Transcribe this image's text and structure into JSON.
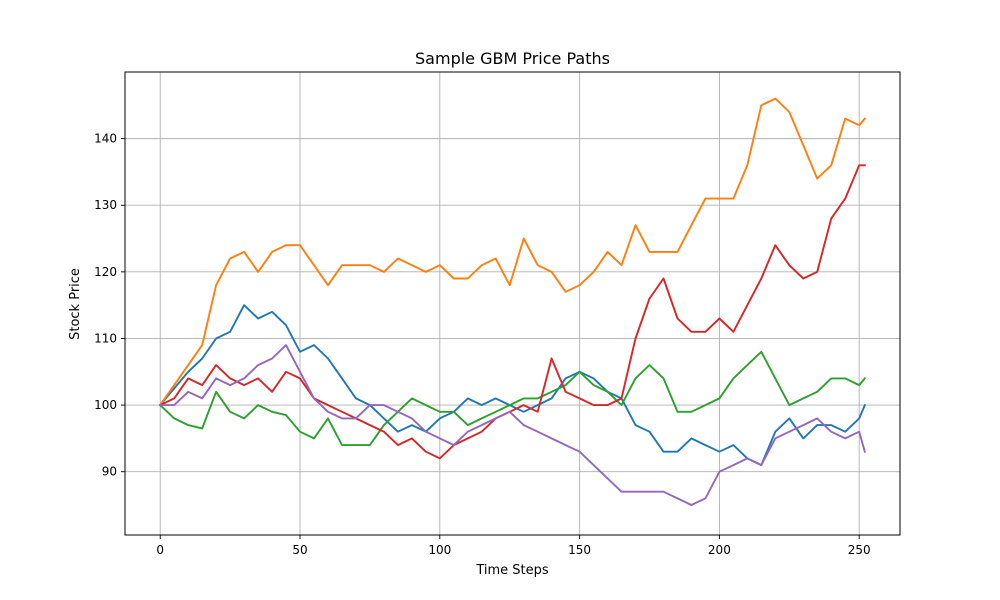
{
  "chart_data": {
    "type": "line",
    "title": "Sample GBM Price Paths",
    "xlabel": "Time Steps",
    "ylabel": "Stock Price",
    "xlim": [
      -12.6,
      264.6
    ],
    "ylim": [
      80.5,
      150.0
    ],
    "xticks": [
      0,
      50,
      100,
      150,
      200,
      250
    ],
    "yticks": [
      90,
      100,
      110,
      120,
      130,
      140
    ],
    "grid": true,
    "legend": "none",
    "series": [
      {
        "color": "#1f77b4",
        "points": [
          [
            0,
            100
          ],
          [
            5,
            102.5
          ],
          [
            10,
            105
          ],
          [
            15,
            107
          ],
          [
            20,
            110
          ],
          [
            25,
            111
          ],
          [
            30,
            115
          ],
          [
            35,
            113
          ],
          [
            40,
            114
          ],
          [
            45,
            112
          ],
          [
            50,
            108
          ],
          [
            55,
            109
          ],
          [
            60,
            107
          ],
          [
            65,
            104
          ],
          [
            70,
            101
          ],
          [
            75,
            100
          ],
          [
            80,
            98
          ],
          [
            85,
            96
          ],
          [
            90,
            97
          ],
          [
            95,
            96
          ],
          [
            100,
            98
          ],
          [
            105,
            99
          ],
          [
            110,
            101
          ],
          [
            115,
            100
          ],
          [
            120,
            101
          ],
          [
            125,
            100
          ],
          [
            130,
            99
          ],
          [
            135,
            100
          ],
          [
            140,
            101
          ],
          [
            145,
            104
          ],
          [
            150,
            105
          ],
          [
            155,
            104
          ],
          [
            160,
            102
          ],
          [
            165,
            101
          ],
          [
            170,
            97
          ],
          [
            175,
            96
          ],
          [
            180,
            93
          ],
          [
            185,
            93
          ],
          [
            190,
            95
          ],
          [
            195,
            94
          ],
          [
            200,
            93
          ],
          [
            205,
            94
          ],
          [
            210,
            92
          ],
          [
            215,
            91
          ],
          [
            220,
            96
          ],
          [
            225,
            98
          ],
          [
            230,
            95
          ],
          [
            235,
            97
          ],
          [
            240,
            97
          ],
          [
            245,
            96
          ],
          [
            250,
            98
          ],
          [
            252,
            100
          ]
        ]
      },
      {
        "color": "#ff7f0e",
        "points": [
          [
            0,
            100
          ],
          [
            5,
            103
          ],
          [
            10,
            106
          ],
          [
            15,
            109
          ],
          [
            20,
            118
          ],
          [
            25,
            122
          ],
          [
            30,
            123
          ],
          [
            35,
            120
          ],
          [
            40,
            123
          ],
          [
            45,
            124
          ],
          [
            50,
            124
          ],
          [
            55,
            121
          ],
          [
            60,
            118
          ],
          [
            65,
            121
          ],
          [
            70,
            121
          ],
          [
            75,
            121
          ],
          [
            80,
            120
          ],
          [
            85,
            122
          ],
          [
            90,
            121
          ],
          [
            95,
            120
          ],
          [
            100,
            121
          ],
          [
            105,
            119
          ],
          [
            110,
            119
          ],
          [
            115,
            121
          ],
          [
            120,
            122
          ],
          [
            125,
            118
          ],
          [
            130,
            125
          ],
          [
            135,
            121
          ],
          [
            140,
            120
          ],
          [
            145,
            117
          ],
          [
            150,
            118
          ],
          [
            155,
            120
          ],
          [
            160,
            123
          ],
          [
            165,
            121
          ],
          [
            170,
            127
          ],
          [
            175,
            123
          ],
          [
            180,
            123
          ],
          [
            185,
            123
          ],
          [
            190,
            127
          ],
          [
            195,
            131
          ],
          [
            200,
            131
          ],
          [
            205,
            131
          ],
          [
            210,
            136
          ],
          [
            215,
            145
          ],
          [
            220,
            146
          ],
          [
            225,
            144
          ],
          [
            230,
            139
          ],
          [
            235,
            134
          ],
          [
            240,
            136
          ],
          [
            245,
            143
          ],
          [
            250,
            142
          ],
          [
            252,
            143
          ]
        ]
      },
      {
        "color": "#2ca02c",
        "points": [
          [
            0,
            100
          ],
          [
            5,
            98
          ],
          [
            10,
            97
          ],
          [
            15,
            96.5
          ],
          [
            20,
            102
          ],
          [
            25,
            99
          ],
          [
            30,
            98
          ],
          [
            35,
            100
          ],
          [
            40,
            99
          ],
          [
            45,
            98.5
          ],
          [
            50,
            96
          ],
          [
            55,
            95
          ],
          [
            60,
            98
          ],
          [
            65,
            94
          ],
          [
            70,
            94
          ],
          [
            75,
            94
          ],
          [
            80,
            97
          ],
          [
            85,
            99
          ],
          [
            90,
            101
          ],
          [
            95,
            100
          ],
          [
            100,
            99
          ],
          [
            105,
            99
          ],
          [
            110,
            97
          ],
          [
            115,
            98
          ],
          [
            120,
            99
          ],
          [
            125,
            100
          ],
          [
            130,
            101
          ],
          [
            135,
            101
          ],
          [
            140,
            102
          ],
          [
            145,
            103
          ],
          [
            150,
            105
          ],
          [
            155,
            103
          ],
          [
            160,
            102
          ],
          [
            165,
            100
          ],
          [
            170,
            104
          ],
          [
            175,
            106
          ],
          [
            180,
            104
          ],
          [
            185,
            99
          ],
          [
            190,
            99
          ],
          [
            195,
            100
          ],
          [
            200,
            101
          ],
          [
            205,
            104
          ],
          [
            210,
            106
          ],
          [
            215,
            108
          ],
          [
            220,
            104
          ],
          [
            225,
            100
          ],
          [
            230,
            101
          ],
          [
            235,
            102
          ],
          [
            240,
            104
          ],
          [
            245,
            104
          ],
          [
            250,
            103
          ],
          [
            252,
            104
          ]
        ]
      },
      {
        "color": "#d62728",
        "points": [
          [
            0,
            100
          ],
          [
            5,
            101
          ],
          [
            10,
            104
          ],
          [
            15,
            103
          ],
          [
            20,
            106
          ],
          [
            25,
            104
          ],
          [
            30,
            103
          ],
          [
            35,
            104
          ],
          [
            40,
            102
          ],
          [
            45,
            105
          ],
          [
            50,
            104
          ],
          [
            55,
            101
          ],
          [
            60,
            100
          ],
          [
            65,
            99
          ],
          [
            70,
            98
          ],
          [
            75,
            97
          ],
          [
            80,
            96
          ],
          [
            85,
            94
          ],
          [
            90,
            95
          ],
          [
            95,
            93
          ],
          [
            100,
            92
          ],
          [
            105,
            94
          ],
          [
            110,
            95
          ],
          [
            115,
            96
          ],
          [
            120,
            98
          ],
          [
            125,
            99
          ],
          [
            130,
            100
          ],
          [
            135,
            99
          ],
          [
            140,
            107
          ],
          [
            145,
            102
          ],
          [
            150,
            101
          ],
          [
            155,
            100
          ],
          [
            160,
            100
          ],
          [
            165,
            101
          ],
          [
            170,
            110
          ],
          [
            175,
            116
          ],
          [
            180,
            119
          ],
          [
            185,
            113
          ],
          [
            190,
            111
          ],
          [
            195,
            111
          ],
          [
            200,
            113
          ],
          [
            205,
            111
          ],
          [
            210,
            115
          ],
          [
            215,
            119
          ],
          [
            220,
            124
          ],
          [
            225,
            121
          ],
          [
            230,
            119
          ],
          [
            235,
            120
          ],
          [
            240,
            128
          ],
          [
            245,
            131
          ],
          [
            250,
            136
          ],
          [
            252,
            136
          ]
        ]
      },
      {
        "color": "#9467bd",
        "points": [
          [
            0,
            100
          ],
          [
            5,
            100
          ],
          [
            10,
            102
          ],
          [
            15,
            101
          ],
          [
            20,
            104
          ],
          [
            25,
            103
          ],
          [
            30,
            104
          ],
          [
            35,
            106
          ],
          [
            40,
            107
          ],
          [
            45,
            109
          ],
          [
            50,
            105
          ],
          [
            55,
            101
          ],
          [
            60,
            99
          ],
          [
            65,
            98
          ],
          [
            70,
            98
          ],
          [
            75,
            100
          ],
          [
            80,
            100
          ],
          [
            85,
            99
          ],
          [
            90,
            98
          ],
          [
            95,
            96
          ],
          [
            100,
            95
          ],
          [
            105,
            94
          ],
          [
            110,
            96
          ],
          [
            115,
            97
          ],
          [
            120,
            98
          ],
          [
            125,
            99
          ],
          [
            130,
            97
          ],
          [
            135,
            96
          ],
          [
            140,
            95
          ],
          [
            145,
            94
          ],
          [
            150,
            93
          ],
          [
            155,
            91
          ],
          [
            160,
            89
          ],
          [
            165,
            87
          ],
          [
            170,
            87
          ],
          [
            175,
            87
          ],
          [
            180,
            87
          ],
          [
            185,
            86
          ],
          [
            190,
            85
          ],
          [
            195,
            86
          ],
          [
            200,
            90
          ],
          [
            205,
            91
          ],
          [
            210,
            92
          ],
          [
            215,
            91
          ],
          [
            220,
            95
          ],
          [
            225,
            96
          ],
          [
            230,
            97
          ],
          [
            235,
            98
          ],
          [
            240,
            96
          ],
          [
            245,
            95
          ],
          [
            250,
            96
          ],
          [
            252,
            93
          ]
        ]
      }
    ]
  }
}
